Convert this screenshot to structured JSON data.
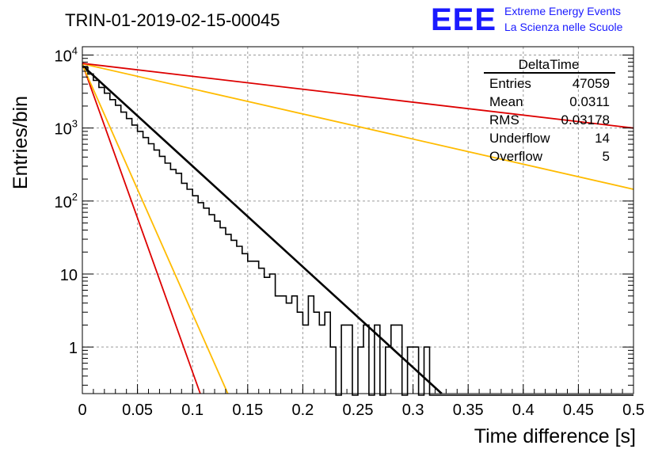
{
  "header": {
    "run_title": "TRIN-01-2019-02-15-00045",
    "logo_text": "EEE",
    "logo_line1": "Extreme Energy Events",
    "logo_line2": "La Scienza nelle Scuole"
  },
  "stats": {
    "title": "DeltaTime",
    "rows": [
      {
        "label": "Entries",
        "value": "47059"
      },
      {
        "label": "Mean",
        "value": "0.0311"
      },
      {
        "label": "RMS",
        "value": "0.03178"
      },
      {
        "label": "Underflow",
        "value": "14"
      },
      {
        "label": "Overflow",
        "value": "5"
      }
    ]
  },
  "colors": {
    "histogram": "#000000",
    "fit_black": "#000000",
    "red": "#dd0000",
    "orange": "#ffbb00",
    "grid": "#9a9a9a",
    "logo_blue": "#1a1aff"
  },
  "chart_data": {
    "type": "line",
    "title": "TRIN-01-2019-02-15-00045",
    "xlabel": "Time difference [s]",
    "ylabel": "Entries/bin",
    "xlim": [
      0,
      0.5
    ],
    "ylim": [
      0.23,
      13000
    ],
    "ylog": true,
    "grid": true,
    "legend": "top-right",
    "x_ticks": [
      0,
      0.05,
      0.1,
      0.15,
      0.2,
      0.25,
      0.3,
      0.35,
      0.4,
      0.45,
      0.5
    ],
    "x_tick_labels": [
      "0",
      "0.05",
      "0.1",
      "0.15",
      "0.2",
      "0.25",
      "0.3",
      "0.35",
      "0.4",
      "0.45",
      "0.5"
    ],
    "y_ticks": [
      1,
      10,
      100,
      1000,
      10000
    ],
    "y_tick_labels": [
      {
        "base": "1",
        "exp": ""
      },
      {
        "base": "10",
        "exp": ""
      },
      {
        "base": "10",
        "exp": "2"
      },
      {
        "base": "10",
        "exp": "3"
      },
      {
        "base": "10",
        "exp": "4"
      }
    ],
    "histogram": {
      "bin_width": 0.005,
      "counts": [
        6800,
        5500,
        4500,
        3600,
        3000,
        2450,
        2050,
        1650,
        1350,
        1100,
        900,
        740,
        610,
        500,
        410,
        330,
        270,
        240,
        175,
        145,
        118,
        95,
        80,
        65,
        53,
        43,
        35,
        29,
        24,
        19,
        15,
        15,
        12,
        9,
        10,
        5,
        5,
        4,
        5,
        3,
        2,
        5,
        3,
        2,
        3,
        1,
        0,
        2,
        2,
        0,
        1,
        2,
        0,
        2,
        0,
        1,
        2,
        2,
        0,
        1,
        1,
        0,
        1,
        0,
        0,
        0,
        0,
        0,
        0,
        0,
        0,
        0,
        0,
        0,
        0,
        0,
        0,
        0,
        0,
        0,
        0,
        0,
        0,
        0,
        0,
        0,
        0,
        0,
        0,
        0,
        0,
        0,
        0,
        0,
        0,
        0,
        0,
        0,
        0,
        0
      ]
    },
    "series": [
      {
        "color": "#000000",
        "points": [
          [
            0,
            7200
          ],
          [
            0.326,
            0.23
          ]
        ]
      },
      {
        "color": "#dd0000",
        "points": [
          [
            0,
            7600
          ],
          [
            0.107,
            0.23
          ]
        ]
      },
      {
        "color": "#ffbb00",
        "points": [
          [
            0,
            7400
          ],
          [
            0.132,
            0.23
          ]
        ]
      },
      {
        "color": "#ffbb00",
        "points": [
          [
            0,
            7600
          ],
          [
            0.5,
            145
          ]
        ]
      },
      {
        "color": "#dd0000",
        "points": [
          [
            0,
            7700
          ],
          [
            0.5,
            1000
          ]
        ]
      }
    ]
  }
}
